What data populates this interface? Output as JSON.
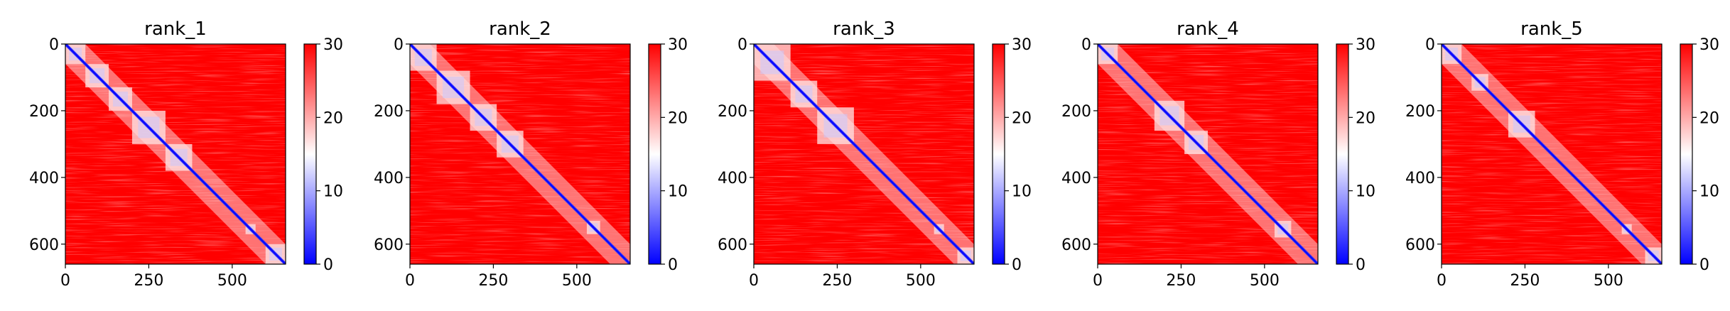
{
  "chart_data": [
    {
      "type": "heatmap",
      "title": "rank_1",
      "xlim": [
        0,
        660
      ],
      "ylim": [
        660,
        0
      ],
      "x_ticks": [
        0,
        250,
        500
      ],
      "y_ticks": [
        0,
        200,
        400,
        600
      ],
      "colorbar": {
        "min": 0,
        "max": 30,
        "ticks": [
          0,
          10,
          20,
          30
        ],
        "colors": [
          "#0000ff",
          "#ffffff",
          "#ff0000"
        ]
      },
      "diagonal_blocks": [
        [
          0,
          60
        ],
        [
          60,
          130
        ],
        [
          130,
          200
        ],
        [
          200,
          300
        ],
        [
          300,
          380
        ],
        [
          540,
          570
        ],
        [
          600,
          660
        ]
      ]
    },
    {
      "type": "heatmap",
      "title": "rank_2",
      "xlim": [
        0,
        660
      ],
      "ylim": [
        660,
        0
      ],
      "x_ticks": [
        0,
        250,
        500
      ],
      "y_ticks": [
        0,
        200,
        400,
        600
      ],
      "colorbar": {
        "min": 0,
        "max": 30,
        "ticks": [
          0,
          10,
          20,
          30
        ],
        "colors": [
          "#0000ff",
          "#ffffff",
          "#ff0000"
        ]
      },
      "diagonal_blocks": [
        [
          0,
          80
        ],
        [
          80,
          180
        ],
        [
          180,
          260
        ],
        [
          260,
          340
        ],
        [
          530,
          570
        ]
      ]
    },
    {
      "type": "heatmap",
      "title": "rank_3",
      "xlim": [
        0,
        660
      ],
      "ylim": [
        660,
        0
      ],
      "x_ticks": [
        0,
        250,
        500
      ],
      "y_ticks": [
        0,
        200,
        400,
        600
      ],
      "colorbar": {
        "min": 0,
        "max": 30,
        "ticks": [
          0,
          10,
          20,
          30
        ],
        "colors": [
          "#0000ff",
          "#ffffff",
          "#ff0000"
        ]
      },
      "diagonal_blocks": [
        [
          0,
          110
        ],
        [
          110,
          190
        ],
        [
          190,
          300
        ],
        [
          540,
          570
        ],
        [
          610,
          660
        ]
      ]
    },
    {
      "type": "heatmap",
      "title": "rank_4",
      "xlim": [
        0,
        660
      ],
      "ylim": [
        660,
        0
      ],
      "x_ticks": [
        0,
        250,
        500
      ],
      "y_ticks": [
        0,
        200,
        400,
        600
      ],
      "colorbar": {
        "min": 0,
        "max": 30,
        "ticks": [
          0,
          10,
          20,
          30
        ],
        "colors": [
          "#0000ff",
          "#ffffff",
          "#ff0000"
        ]
      },
      "diagonal_blocks": [
        [
          0,
          60
        ],
        [
          170,
          260
        ],
        [
          260,
          330
        ],
        [
          530,
          580
        ]
      ]
    },
    {
      "type": "heatmap",
      "title": "rank_5",
      "xlim": [
        0,
        660
      ],
      "ylim": [
        660,
        0
      ],
      "x_ticks": [
        0,
        250,
        500
      ],
      "y_ticks": [
        0,
        200,
        400,
        600
      ],
      "colorbar": {
        "min": 0,
        "max": 30,
        "ticks": [
          0,
          10,
          20,
          30
        ],
        "colors": [
          "#0000ff",
          "#ffffff",
          "#ff0000"
        ]
      },
      "diagonal_blocks": [
        [
          0,
          60
        ],
        [
          90,
          140
        ],
        [
          200,
          280
        ],
        [
          540,
          570
        ],
        [
          610,
          660
        ]
      ]
    }
  ]
}
